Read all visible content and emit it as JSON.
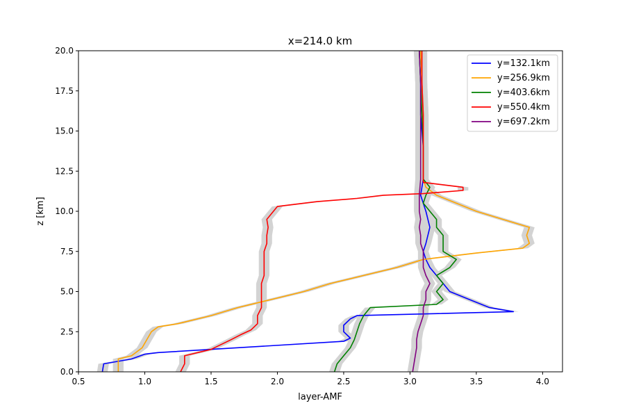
{
  "chart_data": {
    "type": "line",
    "title": "x=214.0 km",
    "xlabel": "layer-AMF",
    "ylabel": "z [km]",
    "xlim": [
      0.5,
      4.15
    ],
    "ylim": [
      0,
      20
    ],
    "xticks": [
      "0.5",
      "1.0",
      "1.5",
      "2.0",
      "2.5",
      "3.0",
      "3.5",
      "4.0"
    ],
    "yticks": [
      "0.0",
      "2.5",
      "5.0",
      "7.5",
      "10.0",
      "12.5",
      "15.0",
      "17.5",
      "20.0"
    ],
    "grid": false,
    "legend_position": "top-right",
    "uncertainty_band_color": "#d3d3d3",
    "series": [
      {
        "name": "y=132.1km",
        "color": "#0000ff",
        "points": [
          [
            0.68,
            0.0
          ],
          [
            0.69,
            0.5
          ],
          [
            0.9,
            0.8
          ],
          [
            1.0,
            1.1
          ],
          [
            1.1,
            1.2
          ],
          [
            2.5,
            1.9
          ],
          [
            2.55,
            2.1
          ],
          [
            2.5,
            2.5
          ],
          [
            2.5,
            2.9
          ],
          [
            2.55,
            3.3
          ],
          [
            2.6,
            3.5
          ],
          [
            3.78,
            3.75
          ],
          [
            3.6,
            4.0
          ],
          [
            3.45,
            4.5
          ],
          [
            3.3,
            5.0
          ],
          [
            3.25,
            5.5
          ],
          [
            3.2,
            6.0
          ],
          [
            3.15,
            6.5
          ],
          [
            3.12,
            7.0
          ],
          [
            3.1,
            7.5
          ],
          [
            3.12,
            8.0
          ],
          [
            3.15,
            9.0
          ],
          [
            3.12,
            10.0
          ],
          [
            3.08,
            11.0
          ],
          [
            3.1,
            12.0
          ],
          [
            3.1,
            14.0
          ],
          [
            3.08,
            16.0
          ],
          [
            3.08,
            18.0
          ],
          [
            3.07,
            20.0
          ]
        ]
      },
      {
        "name": "y=256.9km",
        "color": "#ffa500",
        "points": [
          [
            0.8,
            0.0
          ],
          [
            0.8,
            0.8
          ],
          [
            0.9,
            1.0
          ],
          [
            0.98,
            1.5
          ],
          [
            1.05,
            2.5
          ],
          [
            1.1,
            2.8
          ],
          [
            1.25,
            3.0
          ],
          [
            1.5,
            3.5
          ],
          [
            1.7,
            4.0
          ],
          [
            1.95,
            4.5
          ],
          [
            2.2,
            5.0
          ],
          [
            2.4,
            5.5
          ],
          [
            2.65,
            6.0
          ],
          [
            2.9,
            6.5
          ],
          [
            3.1,
            7.0
          ],
          [
            3.5,
            7.4
          ],
          [
            3.85,
            7.7
          ],
          [
            3.9,
            8.0
          ],
          [
            3.88,
            8.5
          ],
          [
            3.9,
            9.0
          ],
          [
            3.7,
            9.5
          ],
          [
            3.5,
            10.0
          ],
          [
            3.35,
            10.5
          ],
          [
            3.2,
            11.0
          ],
          [
            3.12,
            11.5
          ],
          [
            3.1,
            12.0
          ],
          [
            3.1,
            14.0
          ],
          [
            3.1,
            16.0
          ],
          [
            3.09,
            18.0
          ],
          [
            3.08,
            20.0
          ]
        ]
      },
      {
        "name": "y=403.6km",
        "color": "#008000",
        "points": [
          [
            2.43,
            0.0
          ],
          [
            2.45,
            0.5
          ],
          [
            2.5,
            1.0
          ],
          [
            2.55,
            1.5
          ],
          [
            2.58,
            2.0
          ],
          [
            2.6,
            2.5
          ],
          [
            2.62,
            3.0
          ],
          [
            2.65,
            3.5
          ],
          [
            2.7,
            4.0
          ],
          [
            3.2,
            4.2
          ],
          [
            3.25,
            4.5
          ],
          [
            3.2,
            5.0
          ],
          [
            3.25,
            5.5
          ],
          [
            3.2,
            6.0
          ],
          [
            3.3,
            6.5
          ],
          [
            3.35,
            7.0
          ],
          [
            3.25,
            7.5
          ],
          [
            3.25,
            8.0
          ],
          [
            3.25,
            8.5
          ],
          [
            3.2,
            9.0
          ],
          [
            3.2,
            9.5
          ],
          [
            3.15,
            10.0
          ],
          [
            3.1,
            10.5
          ],
          [
            3.12,
            11.0
          ],
          [
            3.15,
            11.5
          ],
          [
            3.1,
            12.0
          ],
          [
            3.1,
            14.0
          ],
          [
            3.09,
            16.0
          ],
          [
            3.08,
            18.0
          ],
          [
            3.07,
            20.0
          ]
        ]
      },
      {
        "name": "y=550.4km",
        "color": "#ff0000",
        "points": [
          [
            1.27,
            0.0
          ],
          [
            1.3,
            0.5
          ],
          [
            1.3,
            1.0
          ],
          [
            1.5,
            1.4
          ],
          [
            1.65,
            2.0
          ],
          [
            1.72,
            2.3
          ],
          [
            1.8,
            2.6
          ],
          [
            1.85,
            3.0
          ],
          [
            1.85,
            3.5
          ],
          [
            1.88,
            4.0
          ],
          [
            1.88,
            4.5
          ],
          [
            1.88,
            5.0
          ],
          [
            1.88,
            5.5
          ],
          [
            1.9,
            6.0
          ],
          [
            1.9,
            6.5
          ],
          [
            1.9,
            7.0
          ],
          [
            1.9,
            7.5
          ],
          [
            1.92,
            8.0
          ],
          [
            1.92,
            8.5
          ],
          [
            1.93,
            9.0
          ],
          [
            1.92,
            9.5
          ],
          [
            2.0,
            10.3
          ],
          [
            2.3,
            10.6
          ],
          [
            2.6,
            10.8
          ],
          [
            2.8,
            11.0
          ],
          [
            3.1,
            11.1
          ],
          [
            3.4,
            11.3
          ],
          [
            3.4,
            11.5
          ],
          [
            3.1,
            11.8
          ],
          [
            3.1,
            12.0
          ],
          [
            3.1,
            14.0
          ],
          [
            3.1,
            16.0
          ],
          [
            3.09,
            18.0
          ],
          [
            3.09,
            20.0
          ]
        ]
      },
      {
        "name": "y=697.2km",
        "color": "#800080",
        "points": [
          [
            3.02,
            0.0
          ],
          [
            3.03,
            0.5
          ],
          [
            3.04,
            1.0
          ],
          [
            3.05,
            1.5
          ],
          [
            3.05,
            2.0
          ],
          [
            3.06,
            2.5
          ],
          [
            3.08,
            3.0
          ],
          [
            3.1,
            3.5
          ],
          [
            3.1,
            4.0
          ],
          [
            3.12,
            4.5
          ],
          [
            3.12,
            5.0
          ],
          [
            3.15,
            5.5
          ],
          [
            3.12,
            6.0
          ],
          [
            3.1,
            6.5
          ],
          [
            3.1,
            7.0
          ],
          [
            3.1,
            7.5
          ],
          [
            3.08,
            8.0
          ],
          [
            3.08,
            8.5
          ],
          [
            3.07,
            9.0
          ],
          [
            3.08,
            9.5
          ],
          [
            3.07,
            10.0
          ],
          [
            3.07,
            11.0
          ],
          [
            3.08,
            12.0
          ],
          [
            3.08,
            14.0
          ],
          [
            3.08,
            16.0
          ],
          [
            3.08,
            18.0
          ],
          [
            3.07,
            20.0
          ]
        ]
      }
    ]
  }
}
